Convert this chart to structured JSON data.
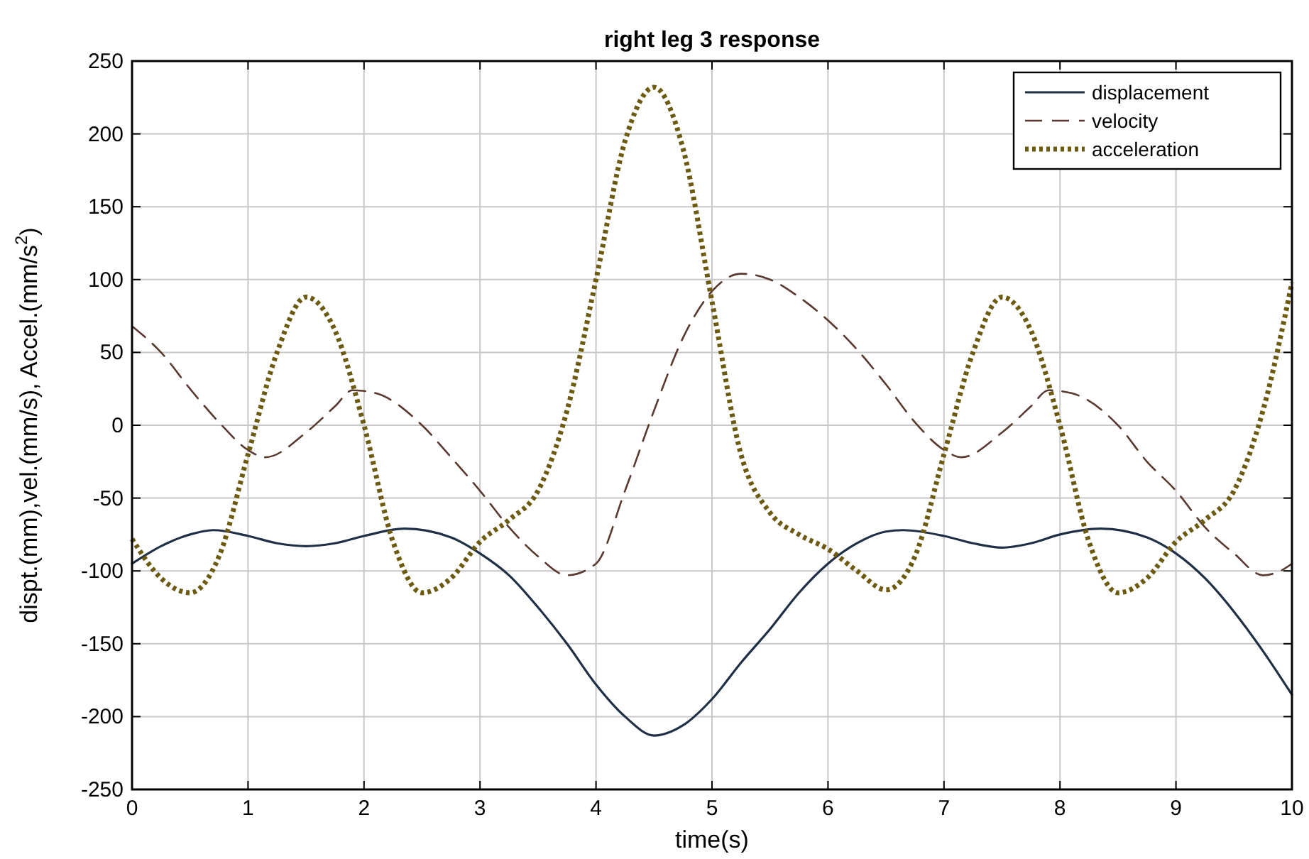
{
  "chart_data": {
    "type": "line",
    "title": "right leg 3 response",
    "xlabel": "time(s)",
    "ylabel": "dispt.(mm),vel.(mm/s), Accel.(mm/s$^{2}$)",
    "xlim": [
      0,
      10
    ],
    "xticks": [
      0,
      1,
      2,
      3,
      4,
      5,
      6,
      7,
      8,
      9,
      10
    ],
    "ylim": [
      -250,
      250
    ],
    "yticks": [
      -250,
      -200,
      -150,
      -100,
      -50,
      0,
      50,
      100,
      150,
      200,
      250
    ],
    "grid": true,
    "legend": "top right",
    "series": [
      {
        "name": "displacement",
        "color": "#1f2f45",
        "line_style": "solid",
        "x": [
          0,
          0.25,
          0.5,
          0.7,
          1,
          1.25,
          1.5,
          1.75,
          2,
          2.35,
          2.75,
          3,
          3.25,
          3.5,
          3.75,
          4,
          4.25,
          4.5,
          4.75,
          5,
          5.25,
          5.5,
          5.75,
          6,
          6.25,
          6.5,
          6.65,
          7,
          7.25,
          7.5,
          7.75,
          8,
          8.35,
          8.75,
          9,
          9.25,
          9.5,
          9.75,
          10
        ],
        "values": [
          -95,
          -83,
          -75,
          -72,
          -76,
          -81,
          -83,
          -81,
          -76,
          -71,
          -77,
          -88,
          -103,
          -125,
          -150,
          -178,
          -200,
          -213,
          -206,
          -188,
          -163,
          -140,
          -115,
          -95,
          -81,
          -73,
          -72,
          -76,
          -81,
          -84,
          -81,
          -75,
          -71,
          -77,
          -88,
          -105,
          -128,
          -155,
          -185
        ]
      },
      {
        "name": "velocity",
        "color": "#5a3a30",
        "line_style": "dashed",
        "x": [
          0,
          0.25,
          0.5,
          0.75,
          1,
          1.15,
          1.5,
          1.75,
          1.9,
          2.1,
          2.5,
          2.75,
          3,
          3.25,
          3.5,
          3.75,
          4,
          4.25,
          4.5,
          4.75,
          5,
          5.25,
          5.5,
          5.75,
          6,
          6.25,
          6.5,
          6.75,
          7,
          7.15,
          7.5,
          7.75,
          7.9,
          8.1,
          8.5,
          8.75,
          9,
          9.25,
          9.5,
          9.75,
          9.9,
          10
        ],
        "values": [
          68,
          50,
          25,
          2,
          -17,
          -22,
          -5,
          13,
          24,
          22,
          0,
          -22,
          -45,
          -70,
          -90,
          -103,
          -95,
          -45,
          10,
          60,
          92,
          104,
          100,
          88,
          72,
          52,
          28,
          2,
          -17,
          -22,
          -5,
          13,
          24,
          22,
          0,
          -25,
          -45,
          -70,
          -88,
          -103,
          -100,
          -95
        ]
      },
      {
        "name": "acceleration",
        "color": "#6b5a10",
        "line_style": "dotted",
        "x": [
          0,
          0.25,
          0.5,
          0.75,
          1,
          1.25,
          1.5,
          1.75,
          2,
          2.25,
          2.5,
          2.75,
          3,
          3.25,
          3.5,
          3.75,
          4,
          4.25,
          4.5,
          4.75,
          5,
          5.25,
          5.5,
          5.75,
          6,
          6.25,
          6.5,
          6.75,
          7,
          7.25,
          7.5,
          7.75,
          8,
          8.25,
          8.5,
          8.75,
          9,
          9.25,
          9.5,
          9.75,
          10
        ],
        "values": [
          -78,
          -105,
          -115,
          -90,
          -20,
          50,
          88,
          65,
          0,
          -80,
          -115,
          -105,
          -80,
          -65,
          -45,
          10,
          100,
          195,
          232,
          190,
          85,
          -20,
          -60,
          -75,
          -85,
          -100,
          -113,
          -90,
          -20,
          50,
          88,
          65,
          0,
          -80,
          -115,
          -105,
          -80,
          -65,
          -45,
          10,
          98
        ]
      }
    ]
  }
}
